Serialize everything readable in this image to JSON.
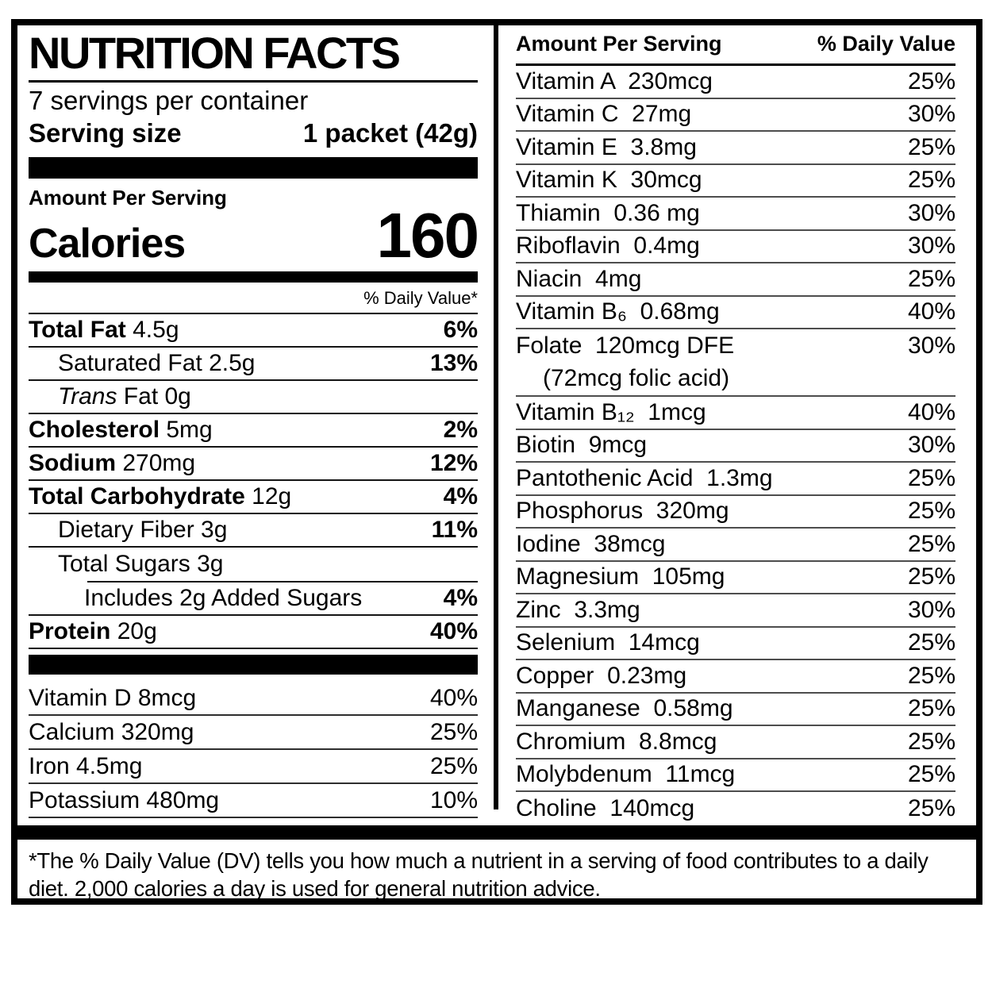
{
  "title": "NUTRITION FACTS",
  "servings": "7 servings per container",
  "serving_size": {
    "label": "Serving size",
    "value": "1 packet (42g)"
  },
  "amount_per_serving": "Amount Per Serving",
  "calories": {
    "label": "Calories",
    "value": "160"
  },
  "dv_header": "% Daily Value*",
  "rows": [
    {
      "b": "Total Fat",
      "r": " 4.5g",
      "dv": "6%"
    },
    {
      "r": "Saturated Fat 2.5g",
      "dv": "13%"
    },
    {
      "i": "Trans",
      "r": " Fat 0g",
      "dv": ""
    },
    {
      "b": "Cholesterol",
      "r": " 5mg",
      "dv": "2%"
    },
    {
      "b": "Sodium",
      "r": " 270mg",
      "dv": "12%"
    },
    {
      "b": "Total Carbohydrate",
      "r": " 12g",
      "dv": "4%"
    },
    {
      "r": "Dietary Fiber 3g",
      "dv": "11%"
    },
    {
      "r": "Total Sugars 3g",
      "dv": ""
    },
    {
      "r": "Includes 2g Added Sugars",
      "dv": "4%"
    },
    {
      "b": "Protein",
      "r": " 20g",
      "dv": "40%"
    }
  ],
  "micros": [
    {
      "name": "Vitamin D 8mcg",
      "dv": "40%"
    },
    {
      "name": "Calcium 320mg",
      "dv": "25%"
    },
    {
      "name": "Iron 4.5mg",
      "dv": "25%"
    },
    {
      "name": "Potassium 480mg",
      "dv": "10%"
    }
  ],
  "right": {
    "header": {
      "amount": "Amount Per Serving",
      "dv": "% Daily Value"
    },
    "rows": [
      {
        "name": "Vitamin A  230mcg",
        "dv": "25%"
      },
      {
        "name": "Vitamin C  27mg",
        "dv": "30%"
      },
      {
        "name": "Vitamin E  3.8mg",
        "dv": "25%"
      },
      {
        "name": "Vitamin K  30mcg",
        "dv": "25%"
      },
      {
        "name": "Thiamin  0.36 mg",
        "dv": "30%"
      },
      {
        "name": "Riboflavin  0.4mg",
        "dv": "30%"
      },
      {
        "name": "Niacin  4mg",
        "dv": "25%"
      },
      {
        "name": "Vitamin B₆  0.68mg",
        "dv": "40%"
      },
      {
        "name": "Folate  120mcg DFE",
        "dv": "30%",
        "note": "(72mcg folic acid)"
      },
      {
        "name": "Vitamin B₁₂  1mcg",
        "dv": "40%"
      },
      {
        "name": "Biotin  9mcg",
        "dv": "30%"
      },
      {
        "name": "Pantothenic Acid  1.3mg",
        "dv": "25%"
      },
      {
        "name": "Phosphorus  320mg",
        "dv": "25%"
      },
      {
        "name": "Iodine  38mcg",
        "dv": "25%"
      },
      {
        "name": "Magnesium  105mg",
        "dv": "25%"
      },
      {
        "name": "Zinc  3.3mg",
        "dv": "30%"
      },
      {
        "name": "Selenium  14mcg",
        "dv": "25%"
      },
      {
        "name": "Copper  0.23mg",
        "dv": "25%"
      },
      {
        "name": "Manganese  0.58mg",
        "dv": "25%"
      },
      {
        "name": "Chromium  8.8mcg",
        "dv": "25%"
      },
      {
        "name": "Molybdenum  11mcg",
        "dv": "25%"
      },
      {
        "name": "Choline  140mcg",
        "dv": "25%"
      }
    ]
  },
  "footnote": "*The % Daily Value (DV) tells you how much a nutrient in a serving of food contributes to a daily diet. 2,000 calories a day is used for general nutrition advice."
}
